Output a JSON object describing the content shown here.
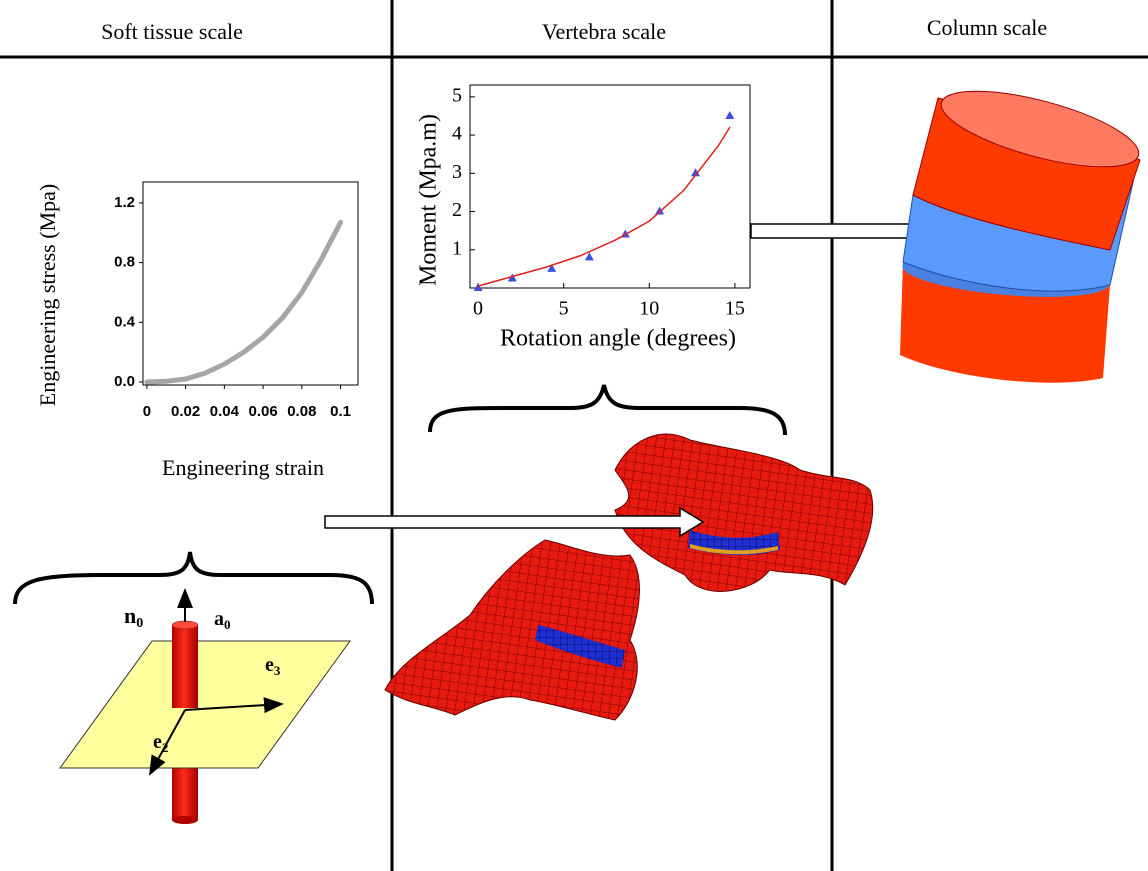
{
  "headers": [
    "Soft tissue scale",
    "Vertebra scale",
    "Column scale"
  ],
  "chart_data": [
    {
      "type": "line",
      "x_label": "Engineering strain",
      "y_label": "Engineering stress (Mpa)",
      "x": [
        0,
        0.01,
        0.02,
        0.03,
        0.04,
        0.05,
        0.06,
        0.07,
        0.08,
        0.09,
        0.1
      ],
      "values": [
        0,
        0.005,
        0.02,
        0.06,
        0.12,
        0.2,
        0.3,
        0.43,
        0.6,
        0.82,
        1.07
      ],
      "color": "#a6a6a6",
      "xlim": [
        -0.002,
        0.109
      ],
      "ylim": [
        -0.02,
        1.34
      ],
      "xticks": [
        0,
        0.02,
        0.04,
        0.06,
        0.08,
        0.1
      ],
      "yticks": [
        {
          "value": 0,
          "label": "0.0"
        },
        {
          "value": 0.4,
          "label": "0.4"
        },
        {
          "value": 0.8,
          "label": "0.8"
        },
        {
          "value": 1.2,
          "label": "1.2"
        }
      ]
    },
    {
      "type": "scatter",
      "x_label": "Rotation angle (degrees)",
      "y_label": "Moment (Mpa.m)",
      "series": [
        {
          "style": "marker",
          "color": "#3b4fe0",
          "x": [
            0,
            2,
            4.3,
            6.5,
            8.6,
            10.6,
            12.7,
            14.7
          ],
          "values": [
            0,
            0.25,
            0.5,
            0.8,
            1.4,
            2.0,
            3.0,
            4.5
          ]
        },
        {
          "style": "line",
          "color": "#e0201a",
          "x": [
            0,
            2,
            4,
            6,
            8,
            10,
            12,
            14,
            14.7
          ],
          "values": [
            0.05,
            0.3,
            0.55,
            0.85,
            1.25,
            1.75,
            2.55,
            3.7,
            4.2
          ]
        }
      ],
      "xlim": [
        -0.47,
        15.88
      ],
      "ylim": [
        0,
        5.31
      ],
      "xticks": [
        0,
        5,
        10,
        15
      ],
      "yticks": [
        1,
        2,
        3,
        4,
        5
      ]
    }
  ],
  "labels": {
    "n0": {
      "base": "n",
      "sub": "0"
    },
    "a0": {
      "base": "a",
      "sub": "0"
    },
    "e3": {
      "base": "e",
      "sub": "3"
    },
    "e2": {
      "base": "e",
      "sub": "2"
    }
  }
}
